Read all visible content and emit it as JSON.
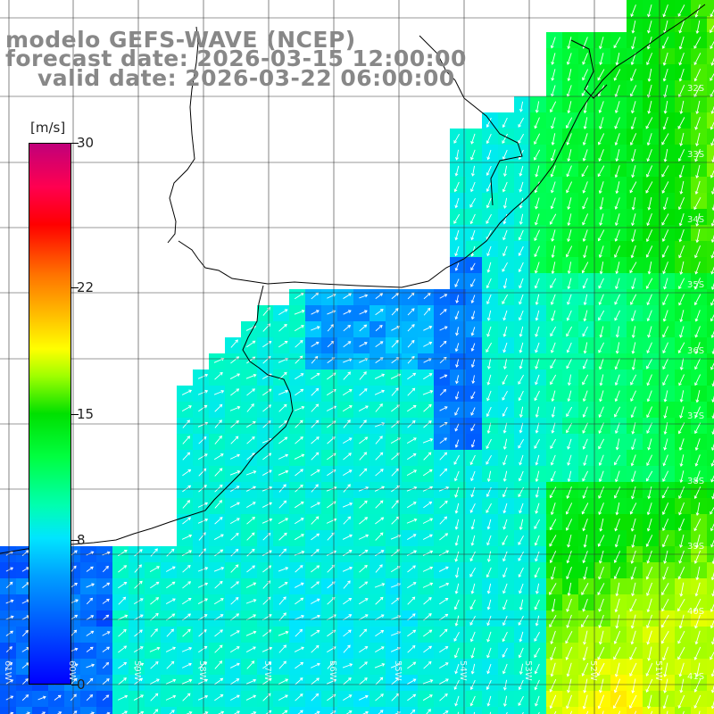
{
  "title": {
    "model": "modelo GEFS-WAVE (NCEP)",
    "forecast": "forecast date: 2026-03-15 12:00:00",
    "valid": "valid date: 2026-03-22 06:00:00"
  },
  "colorbar": {
    "unit": "[m/s]",
    "ticks": [
      {
        "label": "30",
        "value": 30
      },
      {
        "label": "22",
        "value": 22
      },
      {
        "label": "15",
        "value": 15
      },
      {
        "label": "8",
        "value": 8
      },
      {
        "label": "0",
        "value": 0
      }
    ],
    "min": 0,
    "max": 30
  },
  "grid": {
    "lat_labels": [
      "32S",
      "33S",
      "34S",
      "35S",
      "36S",
      "37S",
      "38S",
      "39S",
      "40S",
      "41S"
    ],
    "lon_labels": [
      "61W",
      "60W",
      "59W",
      "58W",
      "57W",
      "56W",
      "55W",
      "54W",
      "53W",
      "52W",
      "51W"
    ]
  },
  "colors": {
    "land": "#ffffff",
    "grid": "#333333",
    "coast": "#000000",
    "arrow": "#ffffff"
  },
  "layer": {
    "variable": "wind speed",
    "arrow-icon": "wind-direction-arrow"
  }
}
